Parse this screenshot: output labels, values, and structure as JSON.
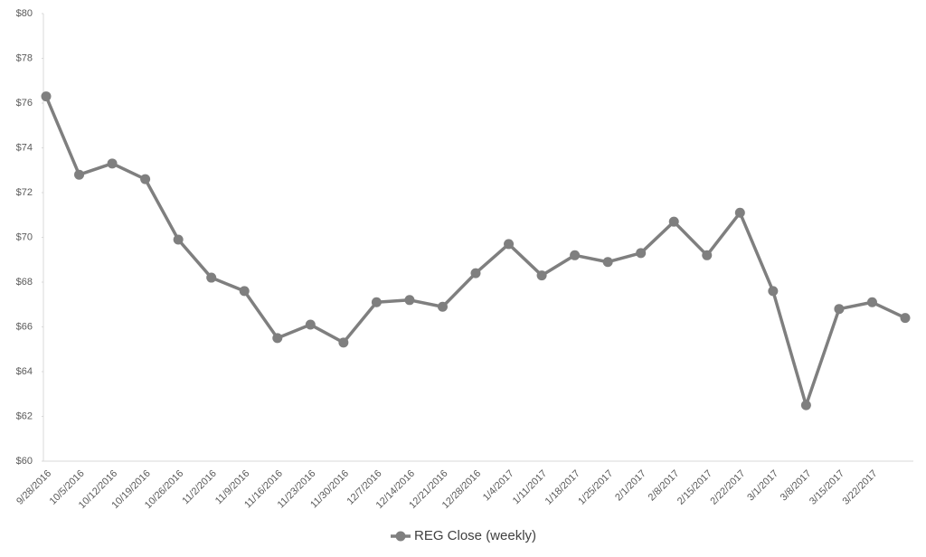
{
  "chart_data": {
    "type": "line",
    "categories": [
      "9/28/2016",
      "10/5/2016",
      "10/12/2016",
      "10/19/2016",
      "10/26/2016",
      "11/2/2016",
      "11/9/2016",
      "11/16/2016",
      "11/23/2016",
      "11/30/2016",
      "12/7/2016",
      "12/14/2016",
      "12/21/2016",
      "12/28/2016",
      "1/4/2017",
      "1/11/2017",
      "1/18/2017",
      "1/25/2017",
      "2/1/2017",
      "2/8/2017",
      "2/15/2017",
      "2/22/2017",
      "3/1/2017",
      "3/8/2017",
      "3/15/2017",
      "3/22/2017",
      null
    ],
    "series": [
      {
        "name": "REG Close (weekly)",
        "color": "#7f7f7f",
        "values": [
          76.3,
          72.8,
          73.3,
          72.6,
          69.9,
          68.2,
          67.6,
          65.5,
          66.1,
          65.3,
          67.1,
          67.2,
          66.9,
          68.4,
          69.7,
          68.3,
          69.2,
          68.9,
          69.3,
          70.7,
          69.2,
          71.1,
          67.6,
          62.5,
          66.8,
          67.1,
          66.4
        ]
      }
    ],
    "ylim": [
      60,
      80
    ],
    "yticks": [
      {
        "value": 60,
        "label": "$60"
      },
      {
        "value": 62,
        "label": "$62"
      },
      {
        "value": 64,
        "label": "$64"
      },
      {
        "value": 66,
        "label": "$66"
      },
      {
        "value": 68,
        "label": "$68"
      },
      {
        "value": 70,
        "label": "$70"
      },
      {
        "value": 72,
        "label": "$72"
      },
      {
        "value": 74,
        "label": "$74"
      },
      {
        "value": 76,
        "label": "$76"
      },
      {
        "value": 78,
        "label": "$78"
      },
      {
        "value": 80,
        "label": "$80"
      }
    ],
    "grid": false,
    "legend": "bottom"
  }
}
